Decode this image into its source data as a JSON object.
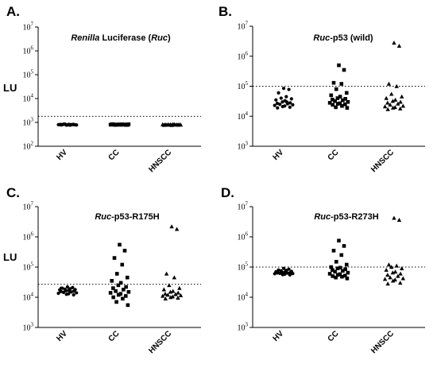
{
  "chart_data": [
    {
      "type": "scatter",
      "panel_label": "A.",
      "title_italic": "Renilla",
      "title_mid": " Luciferase (",
      "title_italic2": "Ruc",
      "title_end": ")",
      "ylabel": "LU",
      "yscale": "log",
      "ylim": [
        100,
        10000000
      ],
      "y_tick_base": "10",
      "y_tick_exponents": [
        "2",
        "3",
        "4",
        "5",
        "6",
        "7"
      ],
      "categories": [
        "HV",
        "CC",
        "HNSCC"
      ],
      "markers": [
        "circle",
        "square",
        "triangle"
      ],
      "threshold": 1800,
      "series": [
        {
          "values": [
            780,
            820,
            800,
            760,
            850,
            790,
            810,
            830,
            770,
            800,
            820,
            790,
            840,
            780,
            805,
            815,
            795,
            825,
            785,
            810
          ]
        },
        {
          "values": [
            800,
            820,
            790,
            830,
            810,
            780,
            840,
            800,
            815,
            795,
            825,
            805,
            790,
            835,
            800,
            810,
            820,
            785,
            830,
            805,
            795,
            815
          ]
        },
        {
          "values": [
            760,
            800,
            780,
            820,
            790,
            810,
            770,
            830,
            800,
            785,
            815,
            795,
            805,
            790,
            825,
            800,
            810,
            780
          ]
        }
      ]
    },
    {
      "type": "scatter",
      "panel_label": "B.",
      "title_italic": "Ruc",
      "title_mid": "-p53 (wild)",
      "title_italic2": "",
      "title_end": "",
      "ylabel": "",
      "yscale": "log",
      "ylim": [
        1000,
        10000000
      ],
      "y_tick_base": "10",
      "y_tick_exponents": [
        "3",
        "4",
        "5",
        "6",
        "7"
      ],
      "categories": [
        "HV",
        "CC",
        "HNSCC"
      ],
      "markers": [
        "circle",
        "square",
        "triangle"
      ],
      "threshold": 100000,
      "series": [
        {
          "values": [
            85000,
            78000,
            60000,
            45000,
            40000,
            38000,
            35000,
            33000,
            30000,
            28000,
            27000,
            26000,
            25000,
            24000,
            23000,
            22000,
            21000,
            20000,
            19000,
            30000
          ]
        },
        {
          "values": [
            500000,
            350000,
            130000,
            120000,
            80000,
            60000,
            50000,
            45000,
            40000,
            38000,
            36000,
            34000,
            32000,
            30000,
            28000,
            27000,
            26000,
            25000,
            24000,
            22000,
            20000,
            19000
          ]
        },
        {
          "values": [
            2800000,
            2200000,
            120000,
            100000,
            55000,
            45000,
            40000,
            35000,
            32000,
            30000,
            28000,
            26000,
            24000,
            22000,
            21000,
            20000,
            19000,
            18000,
            17000
          ]
        }
      ]
    },
    {
      "type": "scatter",
      "panel_label": "C.",
      "title_italic": "Ruc",
      "title_mid": "-p53-R175H",
      "title_italic2": "",
      "title_end": "",
      "ylabel": "LU",
      "yscale": "log",
      "ylim": [
        1000,
        10000000
      ],
      "y_tick_base": "10",
      "y_tick_exponents": [
        "3",
        "4",
        "5",
        "6",
        "7"
      ],
      "categories": [
        "HV",
        "CC",
        "HNSCC"
      ],
      "markers": [
        "circle",
        "square",
        "triangle"
      ],
      "threshold": 27000,
      "series": [
        {
          "values": [
            22000,
            21000,
            20000,
            19000,
            18500,
            18000,
            17500,
            17000,
            16500,
            16000,
            15500,
            15000,
            14500,
            14000,
            13500,
            13000,
            12500,
            12000,
            20000,
            15000
          ]
        },
        {
          "values": [
            550000,
            350000,
            200000,
            120000,
            60000,
            45000,
            35000,
            30000,
            25000,
            22000,
            20000,
            18000,
            16000,
            15000,
            14000,
            13000,
            12000,
            11000,
            10000,
            9000,
            7000,
            5500
          ]
        },
        {
          "values": [
            2200000,
            1800000,
            60000,
            45000,
            25000,
            20000,
            18000,
            16000,
            15000,
            14000,
            13000,
            12500,
            12000,
            11500,
            11000,
            10500,
            10000,
            9500,
            9000
          ]
        }
      ]
    },
    {
      "type": "scatter",
      "panel_label": "D.",
      "title_italic": "Ruc",
      "title_mid": "-p53-R273H",
      "title_italic2": "",
      "title_end": "",
      "ylabel": "",
      "yscale": "log",
      "ylim": [
        1000,
        10000000
      ],
      "y_tick_base": "10",
      "y_tick_exponents": [
        "3",
        "4",
        "5",
        "6",
        "7"
      ],
      "categories": [
        "HV",
        "CC",
        "HNSCC"
      ],
      "markers": [
        "circle",
        "square",
        "triangle"
      ],
      "threshold": 100000,
      "series": [
        {
          "values": [
            90000,
            85000,
            80000,
            78000,
            75000,
            72000,
            70000,
            68000,
            66000,
            65000,
            64000,
            63000,
            62000,
            61000,
            60000,
            58000,
            56000,
            55000,
            70000,
            65000
          ]
        },
        {
          "values": [
            750000,
            500000,
            350000,
            250000,
            150000,
            120000,
            100000,
            95000,
            90000,
            85000,
            80000,
            75000,
            70000,
            65000,
            60000,
            58000,
            55000,
            52000,
            50000,
            48000,
            45000,
            42000
          ]
        },
        {
          "values": [
            4200000,
            3600000,
            120000,
            110000,
            100000,
            90000,
            80000,
            70000,
            65000,
            60000,
            55000,
            50000,
            45000,
            42000,
            40000,
            38000,
            35000,
            30000,
            28000
          ]
        }
      ]
    }
  ]
}
